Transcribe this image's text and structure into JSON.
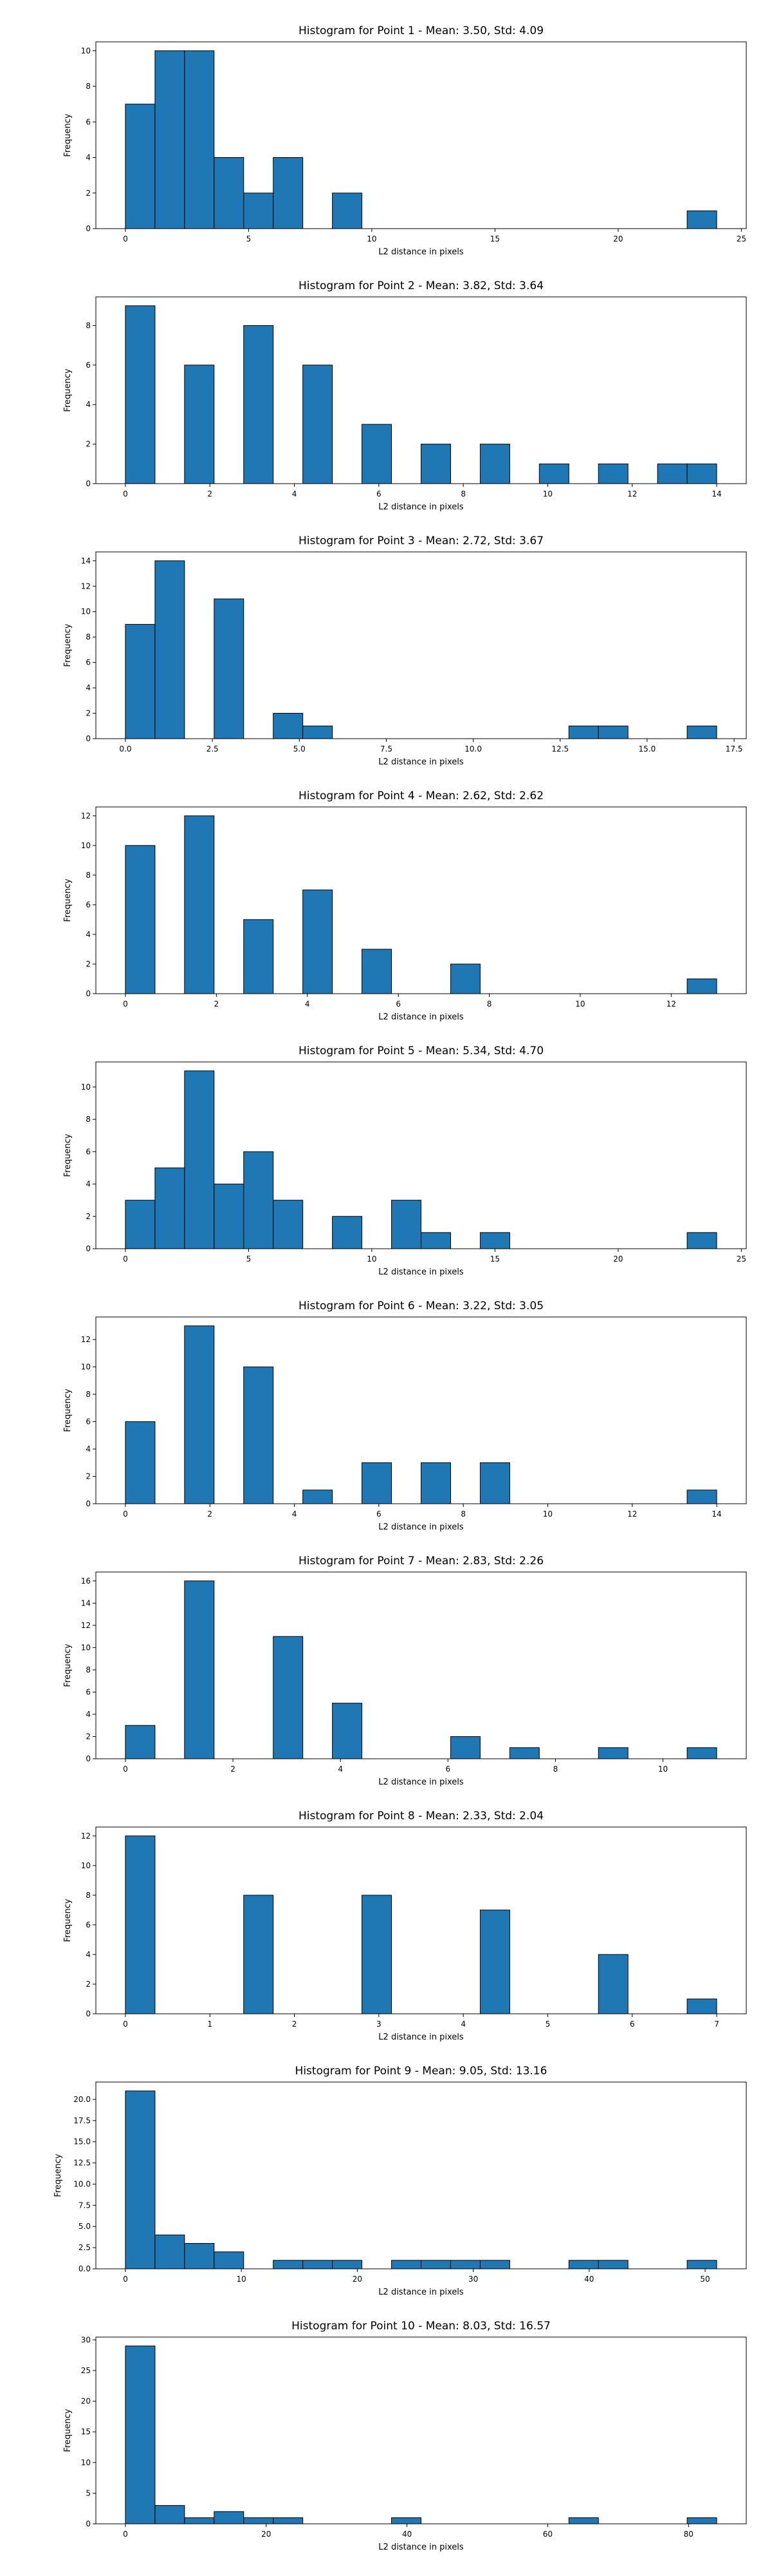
{
  "bar_color": "#1f77b4",
  "bar_edge_color": "#000000",
  "chart_data": [
    {
      "type": "bar",
      "title": "Histogram for Point 1 - Mean: 3.50, Std: 4.09",
      "xlabel": "L2 distance in pixels",
      "ylabel": "Frequency",
      "xlim": [
        -1.2,
        25.2
      ],
      "ylim": [
        0,
        10.5
      ],
      "xticks": [
        0,
        5,
        10,
        15,
        20,
        25
      ],
      "yticks": [
        0,
        2,
        4,
        6,
        8,
        10
      ],
      "bin_edges": [
        0,
        1.2,
        2.4,
        3.6,
        4.8,
        6.0,
        7.2,
        8.4,
        9.6,
        10.8,
        12.0,
        13.2,
        14.4,
        15.6,
        16.8,
        18.0,
        19.2,
        20.4,
        21.6,
        22.8,
        24.0
      ],
      "values": [
        7,
        10,
        10,
        4,
        2,
        4,
        0,
        2,
        0,
        0,
        0,
        0,
        0,
        0,
        0,
        0,
        0,
        0,
        0,
        1
      ]
    },
    {
      "type": "bar",
      "title": "Histogram for Point 2 - Mean: 3.82, Std: 3.64",
      "xlabel": "L2 distance in pixels",
      "ylabel": "Frequency",
      "xlim": [
        -0.7,
        14.7
      ],
      "ylim": [
        0,
        9.45
      ],
      "xticks": [
        0,
        2,
        4,
        6,
        8,
        10,
        12,
        14
      ],
      "yticks": [
        0,
        2,
        4,
        6,
        8
      ],
      "bin_edges": [
        0,
        0.7,
        1.4,
        2.1,
        2.8,
        3.5,
        4.2,
        4.9,
        5.6,
        6.3,
        7.0,
        7.7,
        8.4,
        9.1,
        9.8,
        10.5,
        11.2,
        11.9,
        12.6,
        13.3,
        14.0
      ],
      "values": [
        9,
        0,
        6,
        0,
        8,
        0,
        6,
        0,
        3,
        0,
        2,
        0,
        2,
        0,
        1,
        0,
        1,
        0,
        1,
        1
      ]
    },
    {
      "type": "bar",
      "title": "Histogram for Point 3 - Mean: 2.72, Std: 3.67",
      "xlabel": "L2 distance in pixels",
      "ylabel": "Frequency",
      "xlim": [
        -0.85,
        17.85
      ],
      "ylim": [
        0,
        14.7
      ],
      "xticks": [
        0.0,
        2.5,
        5.0,
        7.5,
        10.0,
        12.5,
        15.0,
        17.5
      ],
      "xticklabels": [
        "0.0",
        "2.5",
        "5.0",
        "7.5",
        "10.0",
        "12.5",
        "15.0",
        "17.5"
      ],
      "yticks": [
        0,
        2,
        4,
        6,
        8,
        10,
        12,
        14
      ],
      "bin_edges": [
        0,
        0.85,
        1.7,
        2.55,
        3.4,
        4.25,
        5.1,
        5.95,
        6.8,
        7.65,
        8.5,
        9.35,
        10.2,
        11.05,
        11.9,
        12.75,
        13.6,
        14.45,
        15.3,
        16.15,
        17.0
      ],
      "values": [
        9,
        14,
        0,
        11,
        0,
        2,
        1,
        0,
        0,
        0,
        0,
        0,
        0,
        0,
        0,
        1,
        1,
        0,
        0,
        1
      ]
    },
    {
      "type": "bar",
      "title": "Histogram for Point 4 - Mean: 2.62, Std: 2.62",
      "xlabel": "L2 distance in pixels",
      "ylabel": "Frequency",
      "xlim": [
        -0.65,
        13.65
      ],
      "ylim": [
        0,
        12.6
      ],
      "xticks": [
        0,
        2,
        4,
        6,
        8,
        10,
        12
      ],
      "yticks": [
        0,
        2,
        4,
        6,
        8,
        10,
        12
      ],
      "bin_edges": [
        0,
        0.65,
        1.3,
        1.95,
        2.6,
        3.25,
        3.9,
        4.55,
        5.2,
        5.85,
        6.5,
        7.15,
        7.8,
        8.45,
        9.1,
        9.75,
        10.4,
        11.05,
        11.7,
        12.35,
        13.0
      ],
      "values": [
        10,
        0,
        12,
        0,
        5,
        0,
        7,
        0,
        3,
        0,
        0,
        2,
        0,
        0,
        0,
        0,
        0,
        0,
        0,
        1
      ]
    },
    {
      "type": "bar",
      "title": "Histogram for Point 5 - Mean: 5.34, Std: 4.70",
      "xlabel": "L2 distance in pixels",
      "ylabel": "Frequency",
      "xlim": [
        -1.2,
        25.2
      ],
      "ylim": [
        0,
        11.55
      ],
      "xticks": [
        0,
        5,
        10,
        15,
        20,
        25
      ],
      "yticks": [
        0,
        2,
        4,
        6,
        8,
        10
      ],
      "bin_edges": [
        0,
        1.2,
        2.4,
        3.6,
        4.8,
        6.0,
        7.2,
        8.4,
        9.6,
        10.8,
        12.0,
        13.2,
        14.4,
        15.6,
        16.8,
        18.0,
        19.2,
        20.4,
        21.6,
        22.8,
        24.0
      ],
      "values": [
        3,
        5,
        11,
        4,
        6,
        3,
        0,
        2,
        0,
        3,
        1,
        0,
        1,
        0,
        0,
        0,
        0,
        0,
        0,
        1
      ]
    },
    {
      "type": "bar",
      "title": "Histogram for Point 6 - Mean: 3.22, Std: 3.05",
      "xlabel": "L2 distance in pixels",
      "ylabel": "Frequency",
      "xlim": [
        -0.7,
        14.7
      ],
      "ylim": [
        0,
        13.65
      ],
      "xticks": [
        0,
        2,
        4,
        6,
        8,
        10,
        12,
        14
      ],
      "yticks": [
        0,
        2,
        4,
        6,
        8,
        10,
        12
      ],
      "bin_edges": [
        0,
        0.7,
        1.4,
        2.1,
        2.8,
        3.5,
        4.2,
        4.9,
        5.6,
        6.3,
        7.0,
        7.7,
        8.4,
        9.1,
        9.8,
        10.5,
        11.2,
        11.9,
        12.6,
        13.3,
        14.0
      ],
      "values": [
        6,
        0,
        13,
        0,
        10,
        0,
        1,
        0,
        3,
        0,
        3,
        0,
        3,
        0,
        0,
        0,
        0,
        0,
        0,
        1
      ]
    },
    {
      "type": "bar",
      "title": "Histogram for Point 7 - Mean: 2.83, Std: 2.26",
      "xlabel": "L2 distance in pixels",
      "ylabel": "Frequency",
      "xlim": [
        -0.55,
        11.55
      ],
      "ylim": [
        0,
        16.8
      ],
      "xticks": [
        0,
        2,
        4,
        6,
        8,
        10
      ],
      "yticks": [
        0,
        2,
        4,
        6,
        8,
        10,
        12,
        14,
        16
      ],
      "bin_edges": [
        0,
        0.55,
        1.1,
        1.65,
        2.2,
        2.75,
        3.3,
        3.85,
        4.4,
        4.95,
        5.5,
        6.05,
        6.6,
        7.15,
        7.7,
        8.25,
        8.8,
        9.35,
        9.9,
        10.45,
        11.0
      ],
      "values": [
        3,
        0,
        16,
        0,
        0,
        11,
        0,
        5,
        0,
        0,
        0,
        2,
        0,
        1,
        0,
        0,
        1,
        0,
        0,
        1
      ]
    },
    {
      "type": "bar",
      "title": "Histogram for Point 8 - Mean: 2.33, Std: 2.04",
      "xlabel": "L2 distance in pixels",
      "ylabel": "Frequency",
      "xlim": [
        -0.35,
        7.35
      ],
      "ylim": [
        0,
        12.6
      ],
      "xticks": [
        0,
        1,
        2,
        3,
        4,
        5,
        6,
        7
      ],
      "yticks": [
        0,
        2,
        4,
        6,
        8,
        10,
        12
      ],
      "bin_edges": [
        0,
        0.35,
        0.7,
        1.05,
        1.4,
        1.75,
        2.1,
        2.45,
        2.8,
        3.15,
        3.5,
        3.85,
        4.2,
        4.55,
        4.9,
        5.25,
        5.6,
        5.95,
        6.3,
        6.65,
        7.0
      ],
      "values": [
        12,
        0,
        0,
        0,
        8,
        0,
        0,
        0,
        8,
        0,
        0,
        0,
        7,
        0,
        0,
        0,
        4,
        0,
        0,
        1
      ]
    },
    {
      "type": "bar",
      "title": "Histogram for Point 9 - Mean: 9.05, Std: 13.16",
      "xlabel": "L2 distance in pixels",
      "ylabel": "Frequency",
      "xlim": [
        -2.55,
        53.55
      ],
      "ylim": [
        0,
        22.05
      ],
      "xticks": [
        0,
        10,
        20,
        30,
        40,
        50
      ],
      "yticks": [
        0.0,
        2.5,
        5.0,
        7.5,
        10.0,
        12.5,
        15.0,
        17.5,
        20.0
      ],
      "yticklabels": [
        "0.0",
        "2.5",
        "5.0",
        "7.5",
        "10.0",
        "12.5",
        "15.0",
        "17.5",
        "20.0"
      ],
      "bin_edges": [
        0,
        2.55,
        5.1,
        7.65,
        10.2,
        12.75,
        15.3,
        17.85,
        20.4,
        22.95,
        25.5,
        28.05,
        30.6,
        33.15,
        35.7,
        38.25,
        40.8,
        43.35,
        45.9,
        48.45,
        51.0
      ],
      "values": [
        21,
        4,
        3,
        2,
        0,
        1,
        1,
        1,
        0,
        1,
        1,
        1,
        1,
        0,
        0,
        1,
        1,
        0,
        0,
        1
      ]
    },
    {
      "type": "bar",
      "title": "Histogram for Point 10 - Mean: 8.03, Std: 16.57",
      "xlabel": "L2 distance in pixels",
      "ylabel": "Frequency",
      "xlim": [
        -4.2,
        88.2
      ],
      "ylim": [
        0,
        30.45
      ],
      "xticks": [
        0,
        20,
        40,
        60,
        80
      ],
      "yticks": [
        0,
        5,
        10,
        15,
        20,
        25,
        30
      ],
      "bin_edges": [
        0,
        4.2,
        8.4,
        12.6,
        16.8,
        21.0,
        25.2,
        29.4,
        33.6,
        37.8,
        42.0,
        46.2,
        50.4,
        54.6,
        58.8,
        63.0,
        67.2,
        71.4,
        75.6,
        79.8,
        84.0
      ],
      "values": [
        29,
        3,
        1,
        2,
        1,
        1,
        0,
        0,
        0,
        1,
        0,
        0,
        0,
        0,
        0,
        1,
        0,
        0,
        0,
        1
      ]
    }
  ]
}
